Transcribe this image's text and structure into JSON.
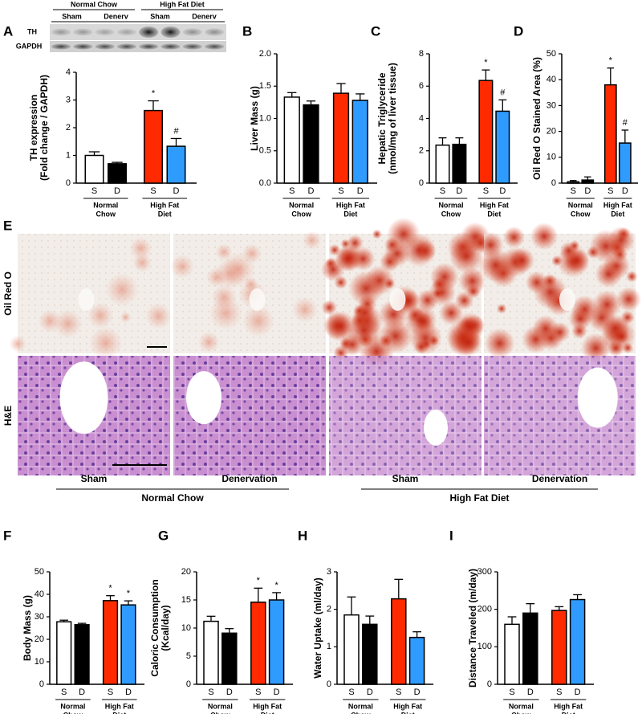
{
  "blot": {
    "panel": "A",
    "group_labels": [
      "Normal Chow",
      "High Fat Diet"
    ],
    "lane_labels": [
      "Sham",
      "Denerv",
      "Sham",
      "Denerv"
    ],
    "row_labels": [
      "TH",
      "GAPDH"
    ]
  },
  "histology": {
    "panel": "E",
    "row_labels": [
      "Oil Red O",
      "H&E"
    ],
    "column_labels": [
      "Sham",
      "Denervation",
      "Sham",
      "Denervation"
    ],
    "group_labels": [
      "Normal Chow",
      "High Fat Diet"
    ]
  },
  "chart_data": [
    {
      "type": "bar",
      "ylabel": [
        "TH expression",
        "(Fold change / GAPDH)"
      ],
      "categories": [
        "S",
        "D",
        "S",
        "D"
      ],
      "groups": [
        [
          "Normal",
          "Chow"
        ],
        [
          "High Fat",
          "Diet"
        ]
      ],
      "values": [
        1.0,
        0.7,
        2.62,
        1.33
      ],
      "errors": [
        0.13,
        0.05,
        0.35,
        0.28
      ],
      "markers": [
        null,
        null,
        "*",
        "#"
      ],
      "colors": [
        "#ffffff",
        "#000000",
        "#ff2a00",
        "#2f9bff"
      ],
      "ylim": [
        0,
        4
      ],
      "yticks": [
        0,
        1,
        2,
        3,
        4
      ]
    },
    {
      "type": "bar",
      "panel": "B",
      "ylabel": [
        "Liver Mass (g)"
      ],
      "categories": [
        "S",
        "D",
        "S",
        "D"
      ],
      "groups": [
        [
          "Normal",
          "Chow"
        ],
        [
          "High Fat",
          "Diet"
        ]
      ],
      "values": [
        1.33,
        1.21,
        1.39,
        1.28
      ],
      "errors": [
        0.07,
        0.06,
        0.15,
        0.1
      ],
      "colors": [
        "#ffffff",
        "#000000",
        "#ff2a00",
        "#2f9bff"
      ],
      "ylim": [
        0,
        2
      ],
      "yticks": [
        {
          "value": 0,
          "label": "0.0"
        },
        0.5,
        {
          "value": 1,
          "label": "1.0"
        },
        1.5,
        {
          "value": 2,
          "label": "2.0"
        }
      ]
    },
    {
      "type": "bar",
      "panel": "C",
      "ylabel": [
        "Hepatic Triglyceride",
        "(nmol/mg of liver tissue)"
      ],
      "categories": [
        "S",
        "D",
        "S",
        "D"
      ],
      "groups": [
        [
          "Normal",
          "Chow"
        ],
        [
          "High Fat",
          "Diet"
        ]
      ],
      "values": [
        2.35,
        2.4,
        6.35,
        4.45
      ],
      "errors": [
        0.45,
        0.4,
        0.65,
        0.7
      ],
      "markers": [
        null,
        null,
        "*",
        "#"
      ],
      "colors": [
        "#ffffff",
        "#000000",
        "#ff2a00",
        "#2f9bff"
      ],
      "ylim": [
        0,
        8
      ],
      "yticks": [
        0,
        2,
        4,
        6,
        8
      ]
    },
    {
      "type": "bar",
      "panel": "D",
      "ylabel": [
        "Oil Red O Stained Area (%)"
      ],
      "categories": [
        "S",
        "D",
        "S",
        "D"
      ],
      "groups": [
        [
          "Normal",
          "Chow"
        ],
        [
          "High Fat",
          "Diet"
        ]
      ],
      "values": [
        0.5,
        1.2,
        38,
        15.5
      ],
      "errors": [
        0.5,
        1.2,
        6.5,
        5
      ],
      "markers": [
        null,
        null,
        "*",
        "#"
      ],
      "colors": [
        "#ffffff",
        "#000000",
        "#ff2a00",
        "#2f9bff"
      ],
      "ylim": [
        0,
        50
      ],
      "yticks": [
        0,
        10,
        20,
        30,
        40,
        50
      ]
    },
    {
      "type": "bar",
      "panel": "F",
      "ylabel": [
        "Body Mass (g)"
      ],
      "categories": [
        "S",
        "D",
        "S",
        "D"
      ],
      "groups": [
        [
          "Normal",
          "Chow"
        ],
        [
          "High Fat",
          "Diet"
        ]
      ],
      "values": [
        27.8,
        26.5,
        37.2,
        35.3
      ],
      "errors": [
        0.7,
        0.6,
        2.2,
        1.8
      ],
      "markers": [
        null,
        null,
        "*",
        "*"
      ],
      "colors": [
        "#ffffff",
        "#000000",
        "#ff2a00",
        "#2f9bff"
      ],
      "ylim": [
        0,
        50
      ],
      "yticks": [
        0,
        10,
        20,
        30,
        40,
        50
      ]
    },
    {
      "type": "bar",
      "panel": "G",
      "ylabel": [
        "Caloric Consumption",
        "(Kcal/day)"
      ],
      "categories": [
        "S",
        "D",
        "S",
        "D"
      ],
      "groups": [
        [
          "Normal",
          "Chow"
        ],
        [
          "High Fat",
          "Diet"
        ]
      ],
      "values": [
        11.2,
        9.1,
        14.6,
        15
      ],
      "errors": [
        0.9,
        0.8,
        2.5,
        1.3
      ],
      "markers": [
        null,
        null,
        "*",
        "*"
      ],
      "colors": [
        "#ffffff",
        "#000000",
        "#ff2a00",
        "#2f9bff"
      ],
      "ylim": [
        0,
        20
      ],
      "yticks": [
        0,
        5,
        10,
        15,
        20
      ]
    },
    {
      "type": "bar",
      "panel": "H",
      "ylabel": [
        "Water Uptake (ml/day)"
      ],
      "categories": [
        "S",
        "D",
        "S",
        "D"
      ],
      "groups": [
        [
          "Normal",
          "Chow"
        ],
        [
          "High Fat",
          "Diet"
        ]
      ],
      "values": [
        1.85,
        1.6,
        2.28,
        1.25
      ],
      "errors": [
        0.48,
        0.22,
        0.52,
        0.15
      ],
      "colors": [
        "#ffffff",
        "#000000",
        "#ff2a00",
        "#2f9bff"
      ],
      "ylim": [
        0,
        3
      ],
      "yticks": [
        0,
        1,
        2,
        3
      ]
    },
    {
      "type": "bar",
      "panel": "I",
      "ylabel": [
        "Distance Traveled (m/day)"
      ],
      "categories": [
        "S",
        "D",
        "S",
        "D"
      ],
      "groups": [
        [
          "Normal",
          "Chow"
        ],
        [
          "High Fat",
          "Diet"
        ]
      ],
      "values": [
        160,
        190,
        197,
        226
      ],
      "errors": [
        20,
        25,
        10,
        13
      ],
      "colors": [
        "#ffffff",
        "#000000",
        "#ff2a00",
        "#2f9bff"
      ],
      "ylim": [
        0,
        300
      ],
      "yticks": [
        0,
        100,
        200,
        300
      ]
    }
  ]
}
